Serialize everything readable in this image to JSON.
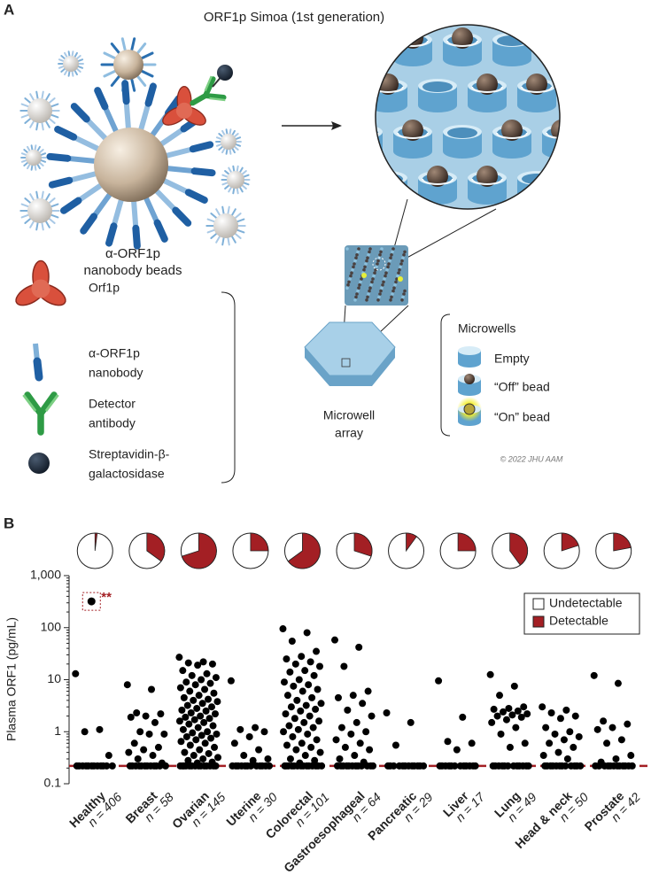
{
  "panel_a": {
    "label": "A",
    "title": "ORF1p Simoa (1st generation)",
    "bead_label": [
      "α-ORF1p",
      "nanobody beads"
    ],
    "legend": [
      [
        "Orf1p"
      ],
      [
        "α-ORF1p",
        "nanobody"
      ],
      [
        "Detector",
        "antibody"
      ],
      [
        "Streptavidin-β-",
        "galactosidase"
      ]
    ],
    "array_label": [
      "Microwell",
      "array"
    ],
    "microwells": {
      "title": "Microwells",
      "items": [
        "Empty",
        "“Off” bead",
        "“On” bead"
      ]
    },
    "signature": "© 2022 JHU AAM"
  },
  "chart_data": {
    "type": "strip",
    "panel_label": "B",
    "ylabel": "Plasma ORF1 (pg/mL)",
    "log": true,
    "ylim": [
      0.1,
      1000
    ],
    "yticks": [
      0.1,
      1,
      10,
      100,
      {
        "value": 1000,
        "label": "1,000"
      }
    ],
    "lod": 0.22,
    "lod_color": "#a31f24",
    "categories": [
      "Healthy",
      "Breast",
      "Ovarian",
      "Uterine",
      "Colorectal",
      "Gastroesophageal",
      "Pancreatic",
      "Liver",
      "Lung",
      "Head & neck",
      "Prostate"
    ],
    "n_labels": [
      "n = 406",
      "n = 58",
      "n = 145",
      "n = 30",
      "n = 101",
      "n = 64",
      "n = 29",
      "n = 17",
      "n = 49",
      "n = 50",
      "n = 42"
    ],
    "series": [
      {
        "name": "Undetectable",
        "color": "#ffffff"
      },
      {
        "name": "Detectable",
        "color": "#a31f24"
      }
    ],
    "detectable_percent": [
      2,
      35,
      70,
      25,
      65,
      30,
      10,
      25,
      40,
      20,
      22
    ],
    "highlight": {
      "category": 0,
      "value": 320,
      "label": "**"
    },
    "points": [
      [
        13,
        1.1,
        1.0,
        0.35,
        0.22,
        0.22,
        0.22,
        0.22,
        0.22,
        0.22,
        0.22,
        0.22,
        0.22,
        0.22,
        0.22,
        0.22
      ],
      [
        8,
        6.5,
        2.3,
        2.2,
        2.0,
        1.9,
        1.5,
        1.0,
        0.9,
        0.9,
        0.6,
        0.5,
        0.45,
        0.4,
        0.35,
        0.3,
        0.25,
        0.22,
        0.22,
        0.22,
        0.22,
        0.22,
        0.22,
        0.22,
        0.22,
        0.22,
        0.22,
        0.22,
        0.22
      ],
      [
        27,
        22,
        21,
        20,
        19,
        15,
        13,
        12,
        11,
        10,
        9,
        8.5,
        8,
        7,
        6.5,
        6,
        5.5,
        5,
        4.5,
        4.2,
        4,
        3.8,
        3.5,
        3.2,
        3,
        2.8,
        2.6,
        2.5,
        2.3,
        2.2,
        2,
        1.9,
        1.8,
        1.7,
        1.6,
        1.5,
        1.4,
        1.3,
        1.2,
        1.1,
        1,
        0.95,
        0.9,
        0.85,
        0.8,
        0.75,
        0.7,
        0.65,
        0.6,
        0.55,
        0.5,
        0.45,
        0.4,
        0.38,
        0.35,
        0.32,
        0.3,
        0.28,
        0.26,
        0.25,
        0.22,
        0.22,
        0.22,
        0.22,
        0.22,
        0.22,
        0.22,
        0.22,
        0.22,
        0.22,
        0.22,
        0.22,
        0.22,
        0.22
      ],
      [
        9.5,
        1.2,
        1.1,
        1.0,
        0.8,
        0.6,
        0.45,
        0.35,
        0.3,
        0.28,
        0.22,
        0.22,
        0.22,
        0.22,
        0.22,
        0.22,
        0.22,
        0.22,
        0.22,
        0.22,
        0.22,
        0.22
      ],
      [
        95,
        80,
        55,
        35,
        28,
        25,
        22,
        20,
        18,
        15,
        14,
        12,
        10,
        9,
        8,
        7.5,
        6.5,
        6,
        5,
        4.5,
        4,
        3.5,
        3.2,
        3,
        2.7,
        2.5,
        2.2,
        2,
        1.8,
        1.6,
        1.5,
        1.3,
        1.2,
        1.1,
        1,
        0.9,
        0.8,
        0.7,
        0.6,
        0.55,
        0.5,
        0.45,
        0.4,
        0.35,
        0.3,
        0.28,
        0.25,
        0.22,
        0.22,
        0.22,
        0.22,
        0.22,
        0.22,
        0.22,
        0.22,
        0.22,
        0.22,
        0.22,
        0.22,
        0.22,
        0.22
      ],
      [
        58,
        42,
        18,
        6,
        5,
        4.5,
        3.5,
        2.6,
        2,
        1.5,
        1.2,
        1,
        0.9,
        0.7,
        0.6,
        0.5,
        0.45,
        0.35,
        0.3,
        0.26,
        0.22,
        0.22,
        0.22,
        0.22,
        0.22,
        0.22,
        0.22,
        0.22,
        0.22,
        0.22,
        0.22,
        0.22
      ],
      [
        2.3,
        1.5,
        0.55,
        0.22,
        0.22,
        0.22,
        0.22,
        0.22,
        0.22,
        0.22,
        0.22,
        0.22,
        0.22,
        0.22,
        0.22
      ],
      [
        9.5,
        1.9,
        0.65,
        0.6,
        0.45,
        0.22,
        0.22,
        0.22,
        0.22,
        0.22,
        0.22,
        0.22,
        0.22,
        0.22,
        0.22,
        0.22,
        0.22
      ],
      [
        12.5,
        7.5,
        5,
        3,
        2.8,
        2.7,
        2.5,
        2.4,
        2.2,
        2.1,
        2,
        1.9,
        1.7,
        1.5,
        1.2,
        0.9,
        0.6,
        0.5,
        0.22,
        0.22,
        0.22,
        0.22,
        0.22,
        0.22,
        0.22,
        0.22,
        0.22,
        0.22,
        0.22,
        0.22
      ],
      [
        3,
        2.6,
        2.3,
        2,
        1.8,
        1.2,
        1,
        0.9,
        0.8,
        0.7,
        0.6,
        0.5,
        0.4,
        0.35,
        0.3,
        0.22,
        0.22,
        0.22,
        0.22,
        0.22,
        0.22,
        0.22,
        0.22,
        0.22,
        0.22,
        0.22,
        0.22
      ],
      [
        12,
        8.5,
        1.6,
        1.4,
        1.2,
        1.1,
        0.7,
        0.6,
        0.35,
        0.3,
        0.26,
        0.22,
        0.22,
        0.22,
        0.22,
        0.22,
        0.22,
        0.22,
        0.22,
        0.22,
        0.22,
        0.22,
        0.22
      ]
    ]
  }
}
